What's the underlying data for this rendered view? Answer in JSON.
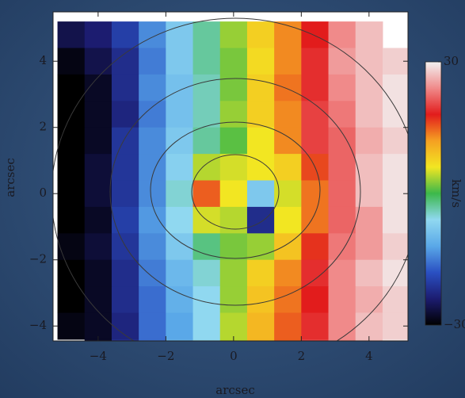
{
  "chart_data": {
    "type": "heatmap",
    "xlabel": "arcsec",
    "ylabel": "arcsec",
    "colorbar_label": "km/s",
    "x": [
      -4.8,
      -4.0,
      -3.2,
      -2.4,
      -1.6,
      -0.8,
      0,
      0.8,
      1.6,
      2.4,
      3.2,
      4.0,
      4.8
    ],
    "y": [
      4.8,
      4.0,
      3.2,
      2.4,
      1.6,
      0.8,
      0,
      -0.8,
      -1.6,
      -2.4,
      -3.2,
      -4.0,
      -4.8
    ],
    "z": [
      [
        -26,
        -24,
        -20,
        -14,
        -8,
        -3,
        3,
        8,
        13,
        18,
        24,
        27,
        null
      ],
      [
        -29,
        -26,
        -22,
        -15,
        -8,
        -3,
        2,
        7,
        13,
        19,
        25,
        27,
        28
      ],
      [
        -30,
        -28,
        -22,
        -14,
        -9,
        -4,
        2,
        8,
        14,
        19,
        24,
        27,
        29
      ],
      [
        -30,
        -28,
        -23,
        -15,
        -9,
        -4,
        3,
        8,
        13,
        20,
        23,
        27,
        29
      ],
      [
        -30,
        -28,
        -21,
        -14,
        -8,
        -3,
        1,
        6,
        13,
        20,
        22,
        26,
        28
      ],
      [
        -30,
        -27,
        -21,
        -14,
        -7,
        4,
        5,
        6,
        8,
        16,
        22,
        27,
        29
      ],
      [
        -30,
        -27,
        -21,
        -14,
        -5,
        15,
        6,
        -8,
        5,
        14,
        22,
        27,
        29
      ],
      [
        -30,
        -28,
        -20,
        -13,
        -6,
        5,
        4,
        -22,
        6,
        14,
        22,
        25,
        29
      ],
      [
        -29,
        -27,
        -21,
        -14,
        -8,
        -2,
        2,
        3,
        9,
        17,
        23,
        25,
        28
      ],
      [
        -30,
        -28,
        -22,
        -15,
        -10,
        -5,
        3,
        8,
        13,
        19,
        24,
        27,
        29
      ],
      [
        -30,
        -28,
        -22,
        -16,
        -11,
        -6,
        3,
        9,
        14,
        18,
        24,
        26,
        28
      ],
      [
        -29,
        -28,
        -23,
        -16,
        -12,
        -6,
        4,
        10,
        15,
        19,
        24,
        27,
        28
      ],
      [
        null,
        -28,
        -22,
        -16,
        -11,
        -6,
        4,
        10,
        15,
        20,
        24,
        27,
        29
      ]
    ],
    "xlim": [
      -5.33,
      5.15
    ],
    "ylim": [
      -4.45,
      5.49
    ],
    "xticks": [
      {
        "value": -4,
        "label": "−4"
      },
      {
        "value": -2,
        "label": "−2"
      },
      0,
      2,
      4
    ],
    "yticks": [
      {
        "value": -4,
        "label": "−4"
      },
      {
        "value": -2,
        "label": "−2"
      },
      0,
      2,
      4
    ],
    "clim": [
      -30,
      30
    ],
    "cticks": [
      {
        "value": -30,
        "label": "−30"
      },
      30
    ],
    "colormap": [
      "#000000",
      "#1c1c70",
      "#2a50c2",
      "#5aa8e8",
      "#90d8f0",
      "#3cb84a",
      "#f2e622",
      "#f5a022",
      "#e21c1c",
      "#f08a8a",
      "#f2f2f2"
    ]
  }
}
